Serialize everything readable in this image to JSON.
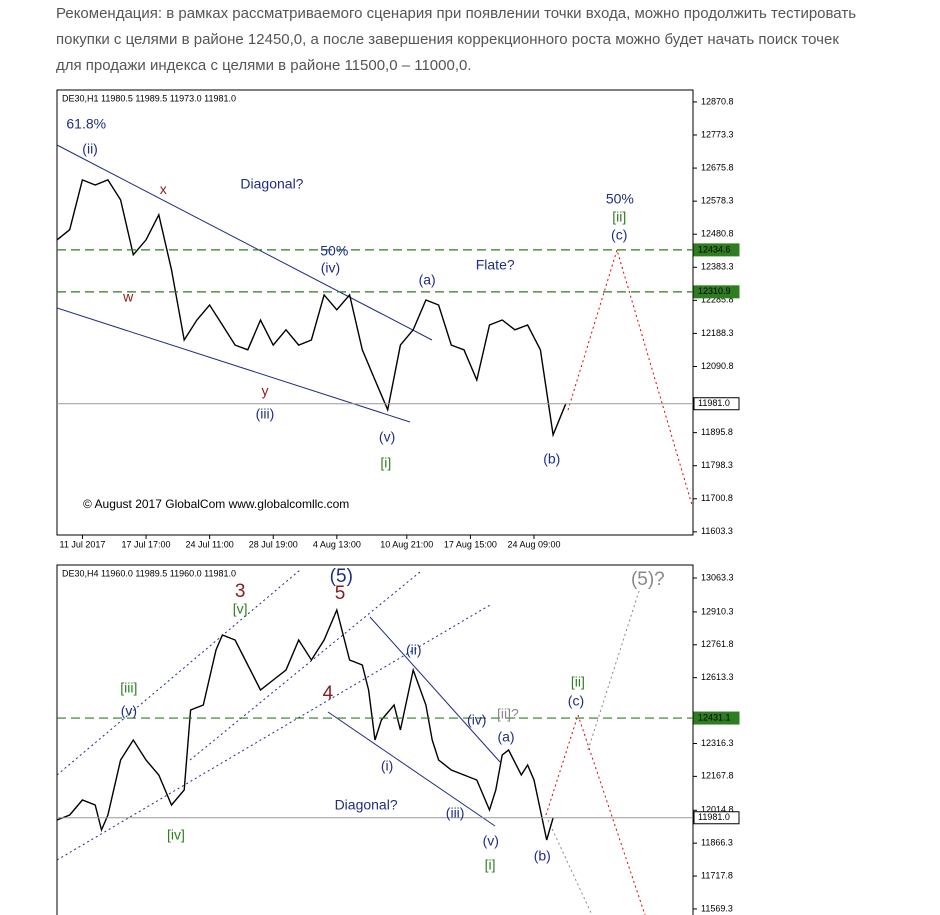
{
  "intro": [
    "Рекомендация: в рамках рассматриваемого сценария при появлении точки входа, можно продолжить тестировать",
    "покупки с целями в районе 12450,0, а после завершения коррекционного роста можно будет начать поиск точек",
    "для продажи индекса с целями в районе 11500,0 – 11000,0."
  ],
  "chart_data": [
    {
      "type": "line",
      "header": "DE30,H1  11980.5 11989.5 11973.0 11981.0",
      "copyright": "© August 2017 GlobalCom www.globalcomllc.com",
      "color": "#000000",
      "x": [
        0,
        2,
        4,
        6,
        8,
        10,
        12,
        14,
        16,
        18,
        20,
        22,
        24,
        26,
        28,
        30,
        32,
        34,
        36,
        38,
        40,
        42,
        44,
        46,
        48,
        50,
        52,
        54,
        56,
        58,
        60,
        62,
        64,
        66,
        68,
        70,
        72,
        74,
        76,
        78,
        80
      ],
      "values": [
        12464,
        12494,
        12641,
        12626,
        12641,
        12582,
        12420,
        12464,
        12538,
        12376,
        12169,
        12228,
        12272,
        12213,
        12154,
        12140,
        12228,
        12154,
        12199,
        12154,
        12169,
        12302,
        12258,
        12302,
        12140,
        12051,
        11963,
        12154,
        12199,
        12287,
        12272,
        12154,
        12140,
        12051,
        12213,
        12228,
        12199,
        12213,
        12140,
        11889,
        11981
      ],
      "xlim": [
        0,
        100
      ],
      "ylim": [
        11594,
        12906
      ],
      "xticks": [
        {
          "value": 4,
          "label": "11 Jul 2017"
        },
        {
          "value": 14,
          "label": "17 Jul 17:00"
        },
        {
          "value": 24,
          "label": "24 Jul 11:00"
        },
        {
          "value": 34,
          "label": "28 Jul 19:00"
        },
        {
          "value": 44,
          "label": "4 Aug 13:00"
        },
        {
          "value": 55,
          "label": "10 Aug 21:00"
        },
        {
          "value": 65,
          "label": "17 Aug 15:00"
        },
        {
          "value": 75,
          "label": "24 Aug 09:00"
        }
      ],
      "yticks": [
        12870.8,
        12773.3,
        12675.8,
        12578.3,
        12480.8,
        12383.3,
        12285.8,
        12188.3,
        12090.8,
        11895.8,
        11798.3,
        11700.8,
        11603.3
      ],
      "levels": [
        {
          "value": 12434.6,
          "color": "#2e7d1e"
        },
        {
          "value": 12310.9,
          "color": "#2e7d1e"
        },
        {
          "value": {
            "value": 11981,
            "label": "11981.0"
          },
          "color": "#999999"
        }
      ],
      "annotations": [
        {
          "text": "61.8%",
          "x": 4.6,
          "y": 12803,
          "color": "#1f2d86"
        },
        {
          "text": "(ii)",
          "x": 5.2,
          "y": 12729,
          "color": "#1f2d86"
        },
        {
          "text": "x",
          "x": 16.7,
          "y": 12611,
          "color": "#8b1a1a"
        },
        {
          "text": "Diagonal?",
          "x": 33.8,
          "y": 12626,
          "color": "#1f2d86"
        },
        {
          "text": "w",
          "x": 11.2,
          "y": 12293,
          "color": "#8b1a1a"
        },
        {
          "text": "50%",
          "x": 43.6,
          "y": 12429,
          "color": "#1f2d86"
        },
        {
          "text": "(iv)",
          "x": 43,
          "y": 12379,
          "color": "#1f2d86"
        },
        {
          "text": "(a)",
          "x": 58.2,
          "y": 12343,
          "color": "#1f2d86"
        },
        {
          "text": "Flate?",
          "x": 68.9,
          "y": 12387,
          "color": "#1f2d86"
        },
        {
          "text": "y",
          "x": 32.7,
          "y": 12016,
          "color": "#8b1a1a"
        },
        {
          "text": "(iii)",
          "x": 32.7,
          "y": 11948,
          "color": "#1f2d86"
        },
        {
          "text": "(v)",
          "x": 51.9,
          "y": 11880,
          "color": "#1f2d86"
        },
        {
          "text": "[i]",
          "x": 51.7,
          "y": 11804,
          "color": "#2e7d1e"
        },
        {
          "text": "(b)",
          "x": 77.8,
          "y": 11816,
          "color": "#1f2d86"
        },
        {
          "text": "50%",
          "x": 88.5,
          "y": 12582,
          "color": "#1f2d86"
        },
        {
          "text": "[ii]",
          "x": 88.4,
          "y": 12529,
          "color": "#2e7d1e"
        },
        {
          "text": "(c)",
          "x": 88.4,
          "y": 12476,
          "color": "#1f2d86"
        }
      ],
      "major_labels": []
    },
    {
      "type": "line",
      "header": "DE30,H4  11960.0 11989.5 11960.0 11981.0",
      "color": "#000000",
      "x": [
        0,
        2,
        4,
        6,
        7,
        8,
        10,
        12,
        14,
        16,
        18,
        20,
        21,
        23,
        25,
        26,
        28,
        30,
        32,
        34,
        36,
        38,
        40,
        42,
        44,
        46,
        48,
        49,
        50,
        51,
        53,
        54,
        56,
        58,
        59,
        60,
        62,
        64,
        66,
        68,
        69,
        70,
        71,
        73,
        74,
        75,
        77,
        78
      ],
      "values": [
        11970.9,
        11993.5,
        12061.2,
        12038.6,
        11925.8,
        11993.5,
        12241.8,
        12332,
        12241.8,
        12174,
        12038.6,
        12106.3,
        12467.5,
        12490,
        12738.3,
        12806,
        12783.4,
        12670.6,
        12557.7,
        12602.9,
        12648,
        12783.4,
        12693.2,
        12783.4,
        12918.9,
        12693.2,
        12670.6,
        12557.7,
        12332,
        12422.3,
        12490,
        12377.2,
        12648,
        12490,
        12332,
        12241.8,
        12196.6,
        12174,
        12151.5,
        12016.1,
        12106.3,
        12264.3,
        12286.9,
        12174,
        12219.2,
        12151.5,
        11880.6,
        11981
      ],
      "xlim": [
        0,
        100
      ],
      "ylim": [
        11542,
        13122
      ],
      "yticks": [
        13063.3,
        12910.3,
        12761.8,
        12613.3,
        12316.3,
        12167.8,
        12014.8,
        11866.3,
        11717.8,
        11569.3
      ],
      "levels": [
        {
          "value": 12431.1,
          "color": "#2e7d1e"
        },
        {
          "value": {
            "value": 11981,
            "label": "11981.0"
          },
          "color": "#999999"
        }
      ],
      "annotations": [
        {
          "text": "[v]",
          "x": 28.8,
          "y": 12918.9,
          "color": "#2e7d1e"
        },
        {
          "text": "(ii)",
          "x": 56.1,
          "y": 12733.8,
          "color": "#1f2d86"
        },
        {
          "text": "[ii]",
          "x": 81.9,
          "y": 12589.3,
          "color": "#2e7d1e"
        },
        {
          "text": "(c)",
          "x": 81.6,
          "y": 12503.6,
          "color": "#1f2d86"
        },
        {
          "text": "[iii]",
          "x": 11.3,
          "y": 12562.2,
          "color": "#2e7d1e"
        },
        {
          "text": "(v)",
          "x": 11.3,
          "y": 12458.4,
          "color": "#1f2d86"
        },
        {
          "text": "(iv)",
          "x": 66,
          "y": 12417.8,
          "color": "#1f2d86"
        },
        {
          "text": "[ii]?",
          "x": 70.9,
          "y": 12444.9,
          "color": "#888888"
        },
        {
          "text": "(a)",
          "x": 70.6,
          "y": 12341,
          "color": "#1f2d86"
        },
        {
          "text": "(i)",
          "x": 51.9,
          "y": 12210,
          "color": "#1f2d86"
        },
        {
          "text": "Diagonal?",
          "x": 48.6,
          "y": 12034,
          "color": "#1f2d86"
        },
        {
          "text": "(iii)",
          "x": 62.6,
          "y": 11998,
          "color": "#1f2d86"
        },
        {
          "text": "[iv]",
          "x": 18.7,
          "y": 11898.7,
          "color": "#2e7d1e"
        },
        {
          "text": "(v)",
          "x": 68.2,
          "y": 11871.6,
          "color": "#1f2d86"
        },
        {
          "text": "[i]",
          "x": 68.1,
          "y": 11763.3,
          "color": "#2e7d1e"
        },
        {
          "text": "(b)",
          "x": 76.3,
          "y": 11803.9,
          "color": "#1f2d86"
        }
      ],
      "major_labels": [
        {
          "text": "(5)",
          "x": 44.7,
          "y": 13067.8,
          "color": "#1f2d86"
        },
        {
          "text": "3",
          "x": 28.8,
          "y": 12999.9,
          "color": "#8b1a1a"
        },
        {
          "text": "5",
          "x": 44.5,
          "y": 12991,
          "color": "#8b1a1a"
        },
        {
          "text": "(5)?",
          "x": 92.9,
          "y": 13054.3,
          "color": "#888888"
        },
        {
          "text": "4",
          "x": 42.6,
          "y": 12539.7,
          "color": "#8b1a1a"
        }
      ]
    }
  ]
}
